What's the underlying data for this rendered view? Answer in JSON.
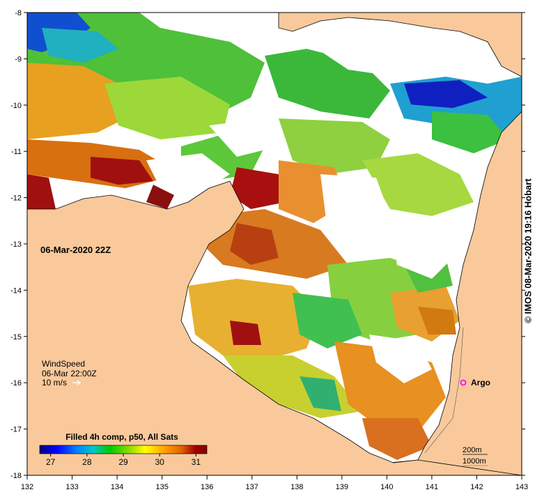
{
  "map": {
    "lon_range": [
      132,
      143
    ],
    "lat_range": [
      -18,
      -8
    ],
    "lon_ticks": [
      "132",
      "133",
      "134",
      "135",
      "136",
      "137",
      "138",
      "139",
      "140",
      "141",
      "142",
      "143"
    ],
    "lat_ticks": [
      "-8",
      "-9",
      "-10",
      "-11",
      "-12",
      "-13",
      "-14",
      "-15",
      "-16",
      "-17",
      "-18"
    ]
  },
  "labels": {
    "timestamp": "06-Mar-2020 22Z",
    "wind_title": "WindSpeed",
    "wind_time": "06-Mar 22:00Z",
    "wind_scale": "10 m/s",
    "argo": "Argo",
    "depth_200": "200m",
    "depth_1000": "1000m",
    "credit": "© IMOS 08-Mar-2020 19:16 Hobart"
  },
  "colorbar": {
    "title": "Filled 4h comp, p50, All Sats",
    "ticks": [
      "27",
      "28",
      "29",
      "30",
      "31"
    ],
    "range": [
      26.7,
      31.3
    ],
    "colors": [
      "#00007f",
      "#0000ff",
      "#0080ff",
      "#00c8c8",
      "#00c800",
      "#a0e000",
      "#ffff00",
      "#ffa000",
      "#e06000",
      "#a00000",
      "#7f0000"
    ]
  },
  "colors": {
    "land": "#f9c99b",
    "no_data": "#ffffff",
    "argo_marker": "#ff00ff"
  },
  "argo_position": {
    "lon": 141.7,
    "lat": -16.0
  }
}
